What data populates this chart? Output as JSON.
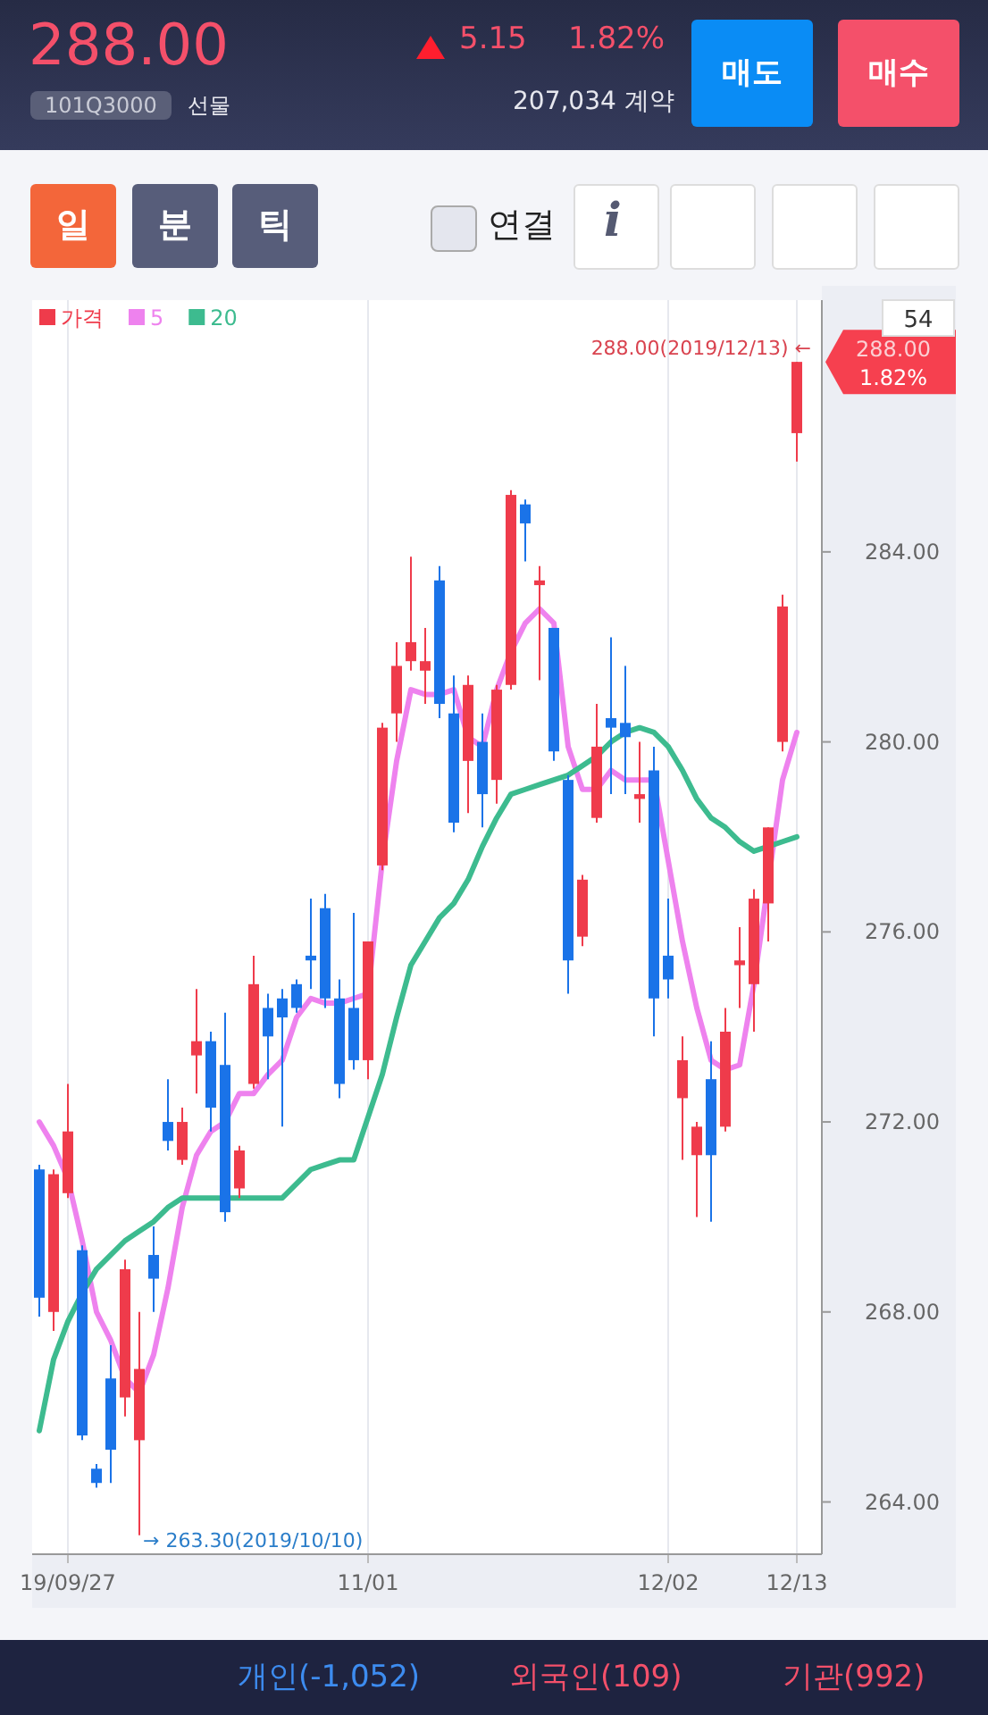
{
  "chart_data": {
    "type": "candlestick",
    "categories": [
      null,
      null,
      "19/09/27",
      null,
      null,
      null,
      null,
      null,
      null,
      null,
      null,
      null,
      null,
      null,
      null,
      null,
      null,
      null,
      null,
      null,
      null,
      null,
      null,
      "11/01",
      null,
      null,
      null,
      null,
      null,
      null,
      null,
      null,
      null,
      null,
      null,
      null,
      null,
      null,
      null,
      null,
      null,
      null,
      null,
      null,
      "12/02",
      null,
      null,
      null,
      null,
      null,
      null,
      null,
      null,
      "12/13"
    ],
    "series": [
      {
        "name": "가격",
        "type": "candlestick",
        "color": "#ef3b4b",
        "colors": [
          "#1a73e8",
          "#ef3b4b",
          "#ef3b4b",
          "#1a73e8",
          "#1a73e8",
          "#1a73e8",
          "#ef3b4b",
          "#ef3b4b",
          "#1a73e8",
          "#1a73e8",
          "#ef3b4b",
          "#ef3b4b",
          "#1a73e8",
          "#1a73e8",
          "#ef3b4b",
          "#ef3b4b",
          "#1a73e8",
          "#1a73e8",
          "#1a73e8",
          "#1a73e8",
          "#1a73e8",
          "#1a73e8",
          "#1a73e8",
          "#ef3b4b",
          "#ef3b4b",
          "#ef3b4b",
          "#ef3b4b",
          "#ef3b4b",
          "#1a73e8",
          "#1a73e8",
          "#ef3b4b",
          "#1a73e8",
          "#ef3b4b",
          "#ef3b4b",
          "#1a73e8",
          "#ef3b4b",
          "#1a73e8",
          "#1a73e8",
          "#ef3b4b",
          "#ef3b4b",
          "#1a73e8",
          "#1a73e8",
          "#ef3b4b",
          "#1a73e8",
          "#1a73e8",
          "#ef3b4b",
          "#ef3b4b",
          "#1a73e8",
          "#ef3b4b",
          "#ef3b4b",
          "#ef3b4b",
          "#ef3b4b",
          "#ef3b4b",
          "#ef3b4b"
        ],
        "ohlc": [
          [
            271.0,
            271.1,
            267.9,
            268.3
          ],
          [
            268.0,
            271.0,
            267.6,
            270.9
          ],
          [
            270.5,
            272.8,
            270.4,
            271.8
          ],
          [
            269.3,
            269.4,
            265.3,
            265.4
          ],
          [
            264.7,
            264.8,
            264.3,
            264.4
          ],
          [
            266.6,
            267.3,
            264.4,
            265.1
          ],
          [
            266.2,
            269.1,
            265.8,
            268.9
          ],
          [
            265.3,
            268.0,
            263.3,
            266.8
          ],
          [
            269.2,
            269.8,
            268.0,
            268.7
          ],
          [
            272.0,
            272.9,
            271.4,
            271.6
          ],
          [
            271.2,
            272.3,
            271.1,
            272.0
          ],
          [
            273.4,
            274.8,
            272.6,
            273.7
          ],
          [
            273.7,
            273.9,
            271.8,
            272.3
          ],
          [
            273.2,
            274.3,
            269.9,
            270.1
          ],
          [
            270.6,
            271.5,
            270.4,
            271.4
          ],
          [
            272.8,
            275.5,
            272.7,
            274.9
          ],
          [
            274.4,
            274.7,
            272.9,
            273.8
          ],
          [
            274.6,
            274.8,
            271.9,
            274.2
          ],
          [
            274.9,
            275.0,
            274.3,
            274.4
          ],
          [
            275.5,
            276.7,
            274.8,
            275.4
          ],
          [
            276.5,
            276.8,
            274.4,
            274.6
          ],
          [
            274.6,
            275.0,
            272.5,
            272.8
          ],
          [
            274.4,
            276.4,
            273.1,
            273.3
          ],
          [
            273.3,
            275.8,
            272.9,
            275.8
          ],
          [
            277.4,
            280.4,
            277.3,
            280.3
          ],
          [
            280.6,
            282.1,
            280.0,
            281.6
          ],
          [
            281.7,
            283.9,
            281.5,
            282.1
          ],
          [
            281.5,
            282.4,
            280.8,
            281.7
          ],
          [
            283.4,
            283.7,
            280.5,
            280.8
          ],
          [
            280.6,
            281.4,
            278.1,
            278.3
          ],
          [
            279.6,
            281.4,
            278.5,
            281.2
          ],
          [
            280.0,
            280.6,
            278.2,
            278.9
          ],
          [
            279.2,
            281.2,
            278.7,
            281.1
          ],
          [
            281.2,
            285.3,
            281.1,
            285.2
          ],
          [
            285.0,
            285.1,
            283.8,
            284.6
          ],
          [
            283.3,
            283.7,
            281.3,
            283.4
          ],
          [
            282.4,
            282.4,
            279.6,
            279.8
          ],
          [
            279.2,
            279.3,
            274.7,
            275.4
          ],
          [
            275.9,
            277.2,
            275.7,
            277.1
          ],
          [
            278.4,
            280.8,
            278.3,
            279.9
          ],
          [
            280.5,
            282.2,
            278.9,
            280.3
          ],
          [
            280.4,
            281.6,
            278.9,
            280.1
          ],
          [
            278.8,
            280.0,
            278.3,
            278.9
          ],
          [
            279.4,
            279.9,
            273.8,
            274.6
          ],
          [
            275.5,
            276.7,
            274.6,
            275.0
          ],
          [
            272.5,
            273.8,
            271.2,
            273.3
          ],
          [
            271.3,
            272.0,
            270.0,
            271.9
          ],
          [
            272.9,
            273.7,
            269.9,
            271.3
          ],
          [
            271.9,
            274.4,
            271.8,
            273.9
          ],
          [
            275.3,
            276.1,
            274.4,
            275.4
          ],
          [
            274.9,
            276.9,
            273.9,
            276.7
          ],
          [
            276.6,
            278.2,
            275.8,
            278.2
          ],
          [
            280.0,
            283.1,
            279.8,
            282.85
          ],
          [
            286.5,
            288.0,
            285.9,
            288.0
          ]
        ]
      },
      {
        "name": "5",
        "type": "line",
        "color": "#ee82ee",
        "values": [
          272.0,
          271.5,
          270.8,
          269.5,
          268.0,
          267.4,
          266.6,
          266.3,
          267.1,
          268.5,
          270.2,
          271.3,
          271.8,
          272.0,
          272.6,
          272.6,
          273.0,
          273.3,
          274.2,
          274.6,
          274.5,
          274.5,
          274.6,
          274.7,
          277.5,
          279.6,
          281.1,
          281.0,
          281.0,
          281.1,
          280.1,
          279.9,
          281.1,
          281.9,
          282.5,
          282.8,
          282.5,
          279.9,
          279.0,
          279.0,
          279.4,
          279.2,
          279.2,
          279.2,
          277.5,
          275.8,
          274.4,
          273.3,
          273.1,
          273.2,
          274.9,
          null,
          279.2,
          280.2
        ]
      },
      {
        "name": "20",
        "type": "line",
        "color": "#3dbb8f",
        "values": [
          265.5,
          267.0,
          267.8,
          268.4,
          268.9,
          269.2,
          269.5,
          269.7,
          269.9,
          270.2,
          270.4,
          270.4,
          270.4,
          270.4,
          270.4,
          270.4,
          270.4,
          270.4,
          270.7,
          271.0,
          271.1,
          271.2,
          271.2,
          272.1,
          273.0,
          274.2,
          275.3,
          275.8,
          276.3,
          276.6,
          277.1,
          277.8,
          278.4,
          278.9,
          279.0,
          279.1,
          279.2,
          279.3,
          279.5,
          279.7,
          280.0,
          280.2,
          280.3,
          280.2,
          279.9,
          279.4,
          278.8,
          278.4,
          278.2,
          277.9,
          277.7,
          277.8,
          277.9,
          278.0
        ]
      }
    ],
    "ylim": [
      262.9,
      289.3
    ],
    "yticks": [
      {
        "value": 264,
        "label": "264.00"
      },
      {
        "value": 268,
        "label": "268.00"
      },
      {
        "value": 272,
        "label": "272.00"
      },
      {
        "value": 276,
        "label": "276.00"
      },
      {
        "value": 280,
        "label": "280.00"
      },
      {
        "value": 284,
        "label": "284.00"
      }
    ],
    "grid": "x",
    "legend": "top left",
    "annotations": [
      "288.00(2019/12/13) ←",
      "→ 263.30(2019/10/10)",
      "288.00",
      "1.82%",
      "54",
      "288.00",
      "5.15",
      "1.82%",
      "101Q3000",
      "선물",
      "207,034 계약",
      "매도",
      "매수",
      "일",
      "분",
      "틱",
      "연결",
      "i",
      "개인(-1,052)",
      "외국인(109)",
      "기관(992)"
    ]
  }
}
